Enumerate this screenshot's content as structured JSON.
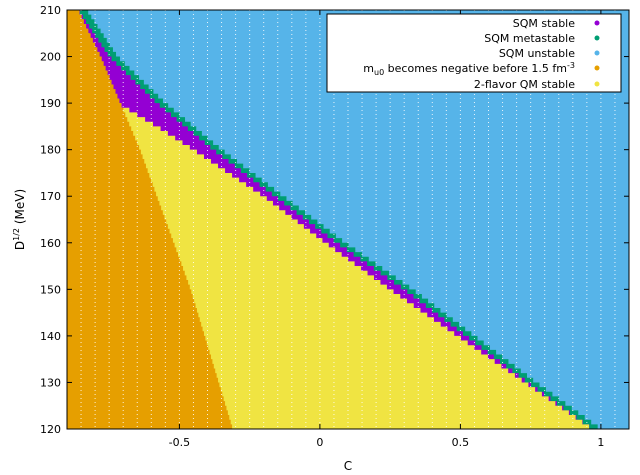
{
  "chart_data": {
    "type": "area",
    "xlabel": "C",
    "ylabel": "D",
    "ylabel_sup": "1/2",
    "ylabel_unit": " (MeV)",
    "xlim": [
      -0.9,
      1.1
    ],
    "ylim": [
      120,
      210
    ],
    "xticks": [
      -0.5,
      0,
      0.5,
      1
    ],
    "xtick_labels": [
      "-0.5",
      "0",
      "0.5",
      "1"
    ],
    "yticks": [
      120,
      130,
      140,
      150,
      160,
      170,
      180,
      190,
      200,
      210
    ],
    "ytick_labels": [
      "120",
      "130",
      "140",
      "150",
      "160",
      "170",
      "180",
      "190",
      "200",
      "210"
    ],
    "grid": "vertical dotted",
    "legend_position": "top-right",
    "colors": {
      "sqm_stable": "#9400d3",
      "sqm_metastable": "#009e73",
      "sqm_unstable": "#56b4e9",
      "mu_negative": "#e69f00",
      "qm2_stable": "#f0e442"
    },
    "legend": [
      {
        "key": "sqm_stable",
        "label": "SQM stable"
      },
      {
        "key": "sqm_metastable",
        "label": "SQM metastable"
      },
      {
        "key": "sqm_unstable",
        "label": "SQM unstable"
      },
      {
        "key": "mu_negative",
        "label_parts": [
          "m",
          "u0",
          " becomes negative before 1.5 fm",
          "-3",
          ""
        ]
      },
      {
        "key": "qm2_stable",
        "label": "2-flavor QM stable"
      }
    ],
    "boundaries": {
      "mu_negative_upper_c": {
        "d": [
          120,
          130,
          140,
          150,
          160,
          170,
          180,
          190,
          200,
          210
        ],
        "c": [
          -0.31,
          -0.36,
          -0.41,
          -0.46,
          -0.52,
          -0.58,
          -0.64,
          -0.71,
          -0.78,
          -0.86
        ]
      },
      "qm2_stable_upper_c": {
        "d": [
          120,
          130,
          140,
          150,
          160,
          170,
          180,
          185,
          190,
          200,
          210
        ],
        "c": [
          0.97,
          0.73,
          0.49,
          0.25,
          0.02,
          -0.2,
          -0.45,
          -0.58,
          -0.72,
          -0.79,
          -0.86
        ]
      },
      "sqm_stable_upper_c": {
        "d": [
          120,
          130,
          140,
          150,
          160,
          170,
          180,
          190,
          200,
          210
        ],
        "c": [
          0.97,
          0.74,
          0.52,
          0.3,
          0.06,
          -0.16,
          -0.38,
          -0.58,
          -0.75,
          -0.86
        ]
      },
      "sqm_metastable_upper_c": {
        "d": [
          120,
          130,
          140,
          150,
          160,
          170,
          180,
          190,
          200,
          210
        ],
        "c": [
          1.0,
          0.77,
          0.55,
          0.33,
          0.09,
          -0.13,
          -0.35,
          -0.55,
          -0.72,
          -0.83
        ]
      }
    }
  }
}
